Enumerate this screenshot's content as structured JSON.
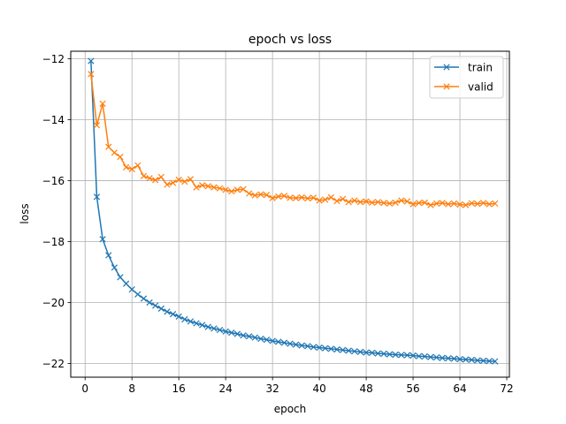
{
  "chart_data": {
    "type": "line",
    "title": "epoch vs loss",
    "xlabel": "epoch",
    "ylabel": "loss",
    "xlim": [
      -2.45,
      72.45
    ],
    "ylim": [
      -22.45,
      -11.75
    ],
    "xticks": [
      0,
      8,
      16,
      24,
      32,
      40,
      48,
      56,
      64,
      72
    ],
    "yticks": [
      -22,
      -20,
      -18,
      -16,
      -14,
      -12
    ],
    "xtick_labels": [
      "0",
      "8",
      "16",
      "24",
      "32",
      "40",
      "48",
      "56",
      "64",
      "72"
    ],
    "ytick_labels": [
      "−22",
      "−20",
      "−18",
      "−16",
      "−14",
      "−12"
    ],
    "grid": true,
    "legend_position": "top-right",
    "x": [
      1,
      2,
      3,
      4,
      5,
      6,
      7,
      8,
      9,
      10,
      11,
      12,
      13,
      14,
      15,
      16,
      17,
      18,
      19,
      20,
      21,
      22,
      23,
      24,
      25,
      26,
      27,
      28,
      29,
      30,
      31,
      32,
      33,
      34,
      35,
      36,
      37,
      38,
      39,
      40,
      41,
      42,
      43,
      44,
      45,
      46,
      47,
      48,
      49,
      50,
      51,
      52,
      53,
      54,
      55,
      56,
      57,
      58,
      59,
      60,
      61,
      62,
      63,
      64,
      65,
      66,
      67,
      68,
      69,
      70
    ],
    "series": [
      {
        "name": "train",
        "color": "#1f77b4",
        "values": [
          -12.07,
          -16.53,
          -17.92,
          -18.45,
          -18.85,
          -19.17,
          -19.38,
          -19.57,
          -19.73,
          -19.87,
          -20.0,
          -20.1,
          -20.2,
          -20.3,
          -20.38,
          -20.46,
          -20.55,
          -20.62,
          -20.68,
          -20.74,
          -20.8,
          -20.85,
          -20.9,
          -20.95,
          -20.99,
          -21.03,
          -21.08,
          -21.11,
          -21.15,
          -21.19,
          -21.22,
          -21.26,
          -21.29,
          -21.32,
          -21.35,
          -21.38,
          -21.41,
          -21.43,
          -21.46,
          -21.48,
          -21.5,
          -21.52,
          -21.54,
          -21.56,
          -21.58,
          -21.6,
          -21.62,
          -21.64,
          -21.65,
          -21.67,
          -21.68,
          -21.7,
          -21.71,
          -21.72,
          -21.73,
          -21.74,
          -21.76,
          -21.77,
          -21.79,
          -21.8,
          -21.82,
          -21.83,
          -21.84,
          -21.86,
          -21.87,
          -21.88,
          -21.9,
          -21.91,
          -21.92,
          -21.93
        ]
      },
      {
        "name": "valid",
        "color": "#ff7f0e",
        "values": [
          -12.5,
          -14.18,
          -13.47,
          -14.89,
          -15.08,
          -15.22,
          -15.56,
          -15.62,
          -15.5,
          -15.85,
          -15.92,
          -15.98,
          -15.88,
          -16.13,
          -16.07,
          -15.97,
          -16.03,
          -15.95,
          -16.22,
          -16.15,
          -16.18,
          -16.22,
          -16.25,
          -16.3,
          -16.35,
          -16.3,
          -16.28,
          -16.42,
          -16.48,
          -16.45,
          -16.47,
          -16.57,
          -16.52,
          -16.5,
          -16.56,
          -16.57,
          -16.55,
          -16.58,
          -16.56,
          -16.65,
          -16.62,
          -16.55,
          -16.67,
          -16.6,
          -16.7,
          -16.65,
          -16.7,
          -16.68,
          -16.72,
          -16.7,
          -16.73,
          -16.75,
          -16.72,
          -16.65,
          -16.68,
          -16.77,
          -16.73,
          -16.72,
          -16.8,
          -16.75,
          -16.73,
          -16.77,
          -16.75,
          -16.78,
          -16.8,
          -16.74,
          -16.76,
          -16.73,
          -16.77,
          -16.75
        ]
      }
    ]
  }
}
